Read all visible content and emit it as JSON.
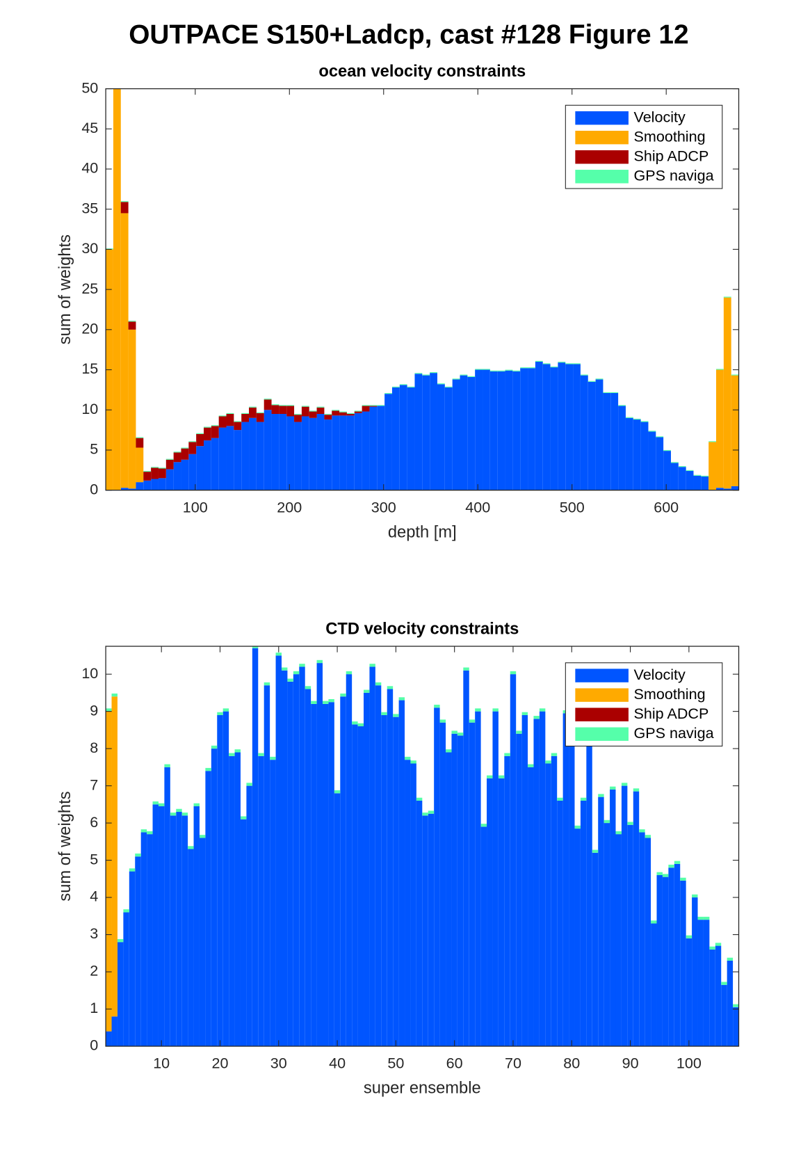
{
  "figure_title": "OUTPACE S150+Ladcp, cast #128  Figure 12",
  "chart_data": [
    {
      "type": "bar",
      "stacked": true,
      "title": "ocean velocity constraints",
      "xlabel": "depth [m]",
      "ylabel": "sum of weights",
      "x": [
        9,
        17,
        25,
        33,
        41,
        49,
        57,
        65,
        73,
        81,
        89,
        97,
        105,
        113,
        121,
        129,
        137,
        145,
        153,
        161,
        169,
        177,
        185,
        193,
        201,
        209,
        217,
        225,
        233,
        241,
        249,
        257,
        265,
        273,
        281,
        289,
        297,
        305,
        313,
        321,
        329,
        337,
        345,
        353,
        361,
        369,
        377,
        385,
        393,
        401,
        409,
        417,
        425,
        433,
        441,
        449,
        457,
        465,
        473,
        481,
        489,
        497,
        505,
        513,
        521,
        529,
        537,
        545,
        553,
        561,
        569,
        577,
        585,
        593,
        601,
        609,
        617,
        625,
        633,
        641,
        649,
        657,
        665,
        673
      ],
      "xlim": [
        5,
        677
      ],
      "xticks": [
        100,
        200,
        300,
        400,
        500,
        600
      ],
      "ylim": [
        0,
        50
      ],
      "yticks": [
        0,
        5,
        10,
        15,
        20,
        25,
        30,
        35,
        40,
        45,
        50
      ],
      "legend": "upper right",
      "series": [
        {
          "name": "Velocity",
          "color": "#0055ff",
          "values": [
            0,
            0,
            0.3,
            0.2,
            1.0,
            1.2,
            1.4,
            1.5,
            2.6,
            3.5,
            3.8,
            4.5,
            5.5,
            6.2,
            6.5,
            7.8,
            8.0,
            7.5,
            8.5,
            9.0,
            8.5,
            10.0,
            9.5,
            9.5,
            9.2,
            8.5,
            9.2,
            9.0,
            9.5,
            8.8,
            9.3,
            9.3,
            9.3,
            9.6,
            9.8,
            10.4,
            10.5,
            12.0,
            12.8,
            13.1,
            12.8,
            14.5,
            14.3,
            14.6,
            13.2,
            12.8,
            13.8,
            14.3,
            14.1,
            15.0,
            15.0,
            14.8,
            14.8,
            14.9,
            14.8,
            15.2,
            15.2,
            16.0,
            15.7,
            15.3,
            15.9,
            15.7,
            15.7,
            14.3,
            13.5,
            13.8,
            12.1,
            12.1,
            10.5,
            9.0,
            8.8,
            8.5,
            7.3,
            6.6,
            4.9,
            3.4,
            2.9,
            2.4,
            1.8,
            1.7,
            0,
            0.3,
            0.2,
            0.5
          ]
        },
        {
          "name": "Smoothing",
          "color": "#ffaa00",
          "values": [
            30,
            50,
            34.2,
            19.8,
            4.3,
            0,
            0,
            0,
            0,
            0,
            0,
            0,
            0,
            0,
            0,
            0,
            0,
            0,
            0,
            0,
            0,
            0,
            0,
            0,
            0,
            0,
            0,
            0,
            0,
            0,
            0,
            0,
            0,
            0,
            0,
            0,
            0,
            0,
            0,
            0,
            0,
            0,
            0,
            0,
            0,
            0,
            0,
            0,
            0,
            0,
            0,
            0,
            0,
            0,
            0,
            0,
            0,
            0,
            0,
            0,
            0,
            0,
            0,
            0,
            0,
            0,
            0,
            0,
            0,
            0,
            0,
            0,
            0,
            0,
            0,
            0,
            0,
            0,
            0,
            0,
            6,
            14.7,
            23.8,
            13.8
          ]
        },
        {
          "name": "Ship ADCP",
          "color": "#aa0000",
          "values": [
            0,
            0,
            1.4,
            1.0,
            1.2,
            1.1,
            1.4,
            1.2,
            1.2,
            1.2,
            1.4,
            1.5,
            1.5,
            1.6,
            1.5,
            1.4,
            1.5,
            1.0,
            1.0,
            1.3,
            1.1,
            1.3,
            1.1,
            1.0,
            1.3,
            0.9,
            1.2,
            0.8,
            0.8,
            0.6,
            0.6,
            0.4,
            0.2,
            0.2,
            0.7,
            0.1,
            0,
            0,
            0,
            0,
            0,
            0,
            0,
            0,
            0,
            0,
            0,
            0,
            0,
            0,
            0,
            0,
            0,
            0,
            0,
            0,
            0,
            0,
            0,
            0,
            0,
            0,
            0,
            0,
            0,
            0,
            0,
            0,
            0,
            0,
            0,
            0,
            0,
            0,
            0,
            0,
            0,
            0,
            0,
            0,
            0,
            0,
            0,
            0
          ]
        },
        {
          "name": "GPS naviga",
          "color": "#55ffaa",
          "values": [
            0.1,
            0.1,
            0.1,
            0.1,
            0.1,
            0.1,
            0.1,
            0.1,
            0.1,
            0.1,
            0.1,
            0.1,
            0.1,
            0.1,
            0.1,
            0.1,
            0.1,
            0.1,
            0.1,
            0.1,
            0.1,
            0.1,
            0.1,
            0.1,
            0.1,
            0.1,
            0.1,
            0.1,
            0.1,
            0.1,
            0.1,
            0.1,
            0.1,
            0.1,
            0.1,
            0.1,
            0.1,
            0.1,
            0.1,
            0.1,
            0.1,
            0.1,
            0.1,
            0.1,
            0.1,
            0.1,
            0.1,
            0.1,
            0.1,
            0.1,
            0.1,
            0.1,
            0.1,
            0.1,
            0.1,
            0.1,
            0.1,
            0.1,
            0.1,
            0.1,
            0.1,
            0.1,
            0.1,
            0.1,
            0.1,
            0.1,
            0.1,
            0.1,
            0.1,
            0.1,
            0.1,
            0.1,
            0.1,
            0.1,
            0.1,
            0.1,
            0.1,
            0.1,
            0.1,
            0.1,
            0.1,
            0.1,
            0.1,
            0.1
          ]
        }
      ]
    },
    {
      "type": "bar",
      "stacked": true,
      "title": "CTD velocity constraints",
      "xlabel": "super ensemble",
      "ylabel": "sum of weights",
      "x": [
        1,
        2,
        3,
        4,
        5,
        6,
        7,
        8,
        9,
        10,
        11,
        12,
        13,
        14,
        15,
        16,
        17,
        18,
        19,
        20,
        21,
        22,
        23,
        24,
        25,
        26,
        27,
        28,
        29,
        30,
        31,
        32,
        33,
        34,
        35,
        36,
        37,
        38,
        39,
        40,
        41,
        42,
        43,
        44,
        45,
        46,
        47,
        48,
        49,
        50,
        51,
        52,
        53,
        54,
        55,
        56,
        57,
        58,
        59,
        60,
        61,
        62,
        63,
        64,
        65,
        66,
        67,
        68,
        69,
        70,
        71,
        72,
        73,
        74,
        75,
        76,
        77,
        78,
        79,
        80,
        81,
        82,
        83,
        84,
        85,
        86,
        87,
        88,
        89,
        90,
        91,
        92,
        93,
        94,
        95,
        96,
        97,
        98,
        99,
        100,
        101,
        102,
        103,
        104,
        105,
        106,
        107,
        108
      ],
      "xlim": [
        0.5,
        108.5
      ],
      "xticks": [
        10,
        20,
        30,
        40,
        50,
        60,
        70,
        80,
        90,
        100
      ],
      "ylim": [
        0,
        10.75
      ],
      "yticks": [
        0,
        1,
        2,
        3,
        4,
        5,
        6,
        7,
        8,
        9,
        10
      ],
      "legend": "upper right",
      "series": [
        {
          "name": "Velocity",
          "color": "#0055ff",
          "values": [
            0.4,
            0.8,
            2.8,
            3.6,
            4.7,
            5.1,
            5.75,
            5.7,
            6.5,
            6.45,
            7.5,
            6.2,
            6.3,
            6.2,
            5.3,
            6.45,
            5.6,
            7.4,
            8.0,
            8.9,
            9.0,
            7.8,
            7.9,
            6.1,
            7.0,
            10.7,
            7.8,
            9.7,
            7.7,
            10.5,
            10.1,
            9.8,
            10.0,
            10.2,
            9.6,
            9.2,
            10.3,
            9.2,
            9.25,
            6.8,
            9.4,
            10.0,
            8.65,
            8.6,
            9.5,
            10.2,
            9.7,
            8.9,
            9.6,
            8.85,
            9.3,
            7.7,
            7.6,
            6.6,
            6.2,
            6.25,
            9.1,
            8.7,
            7.9,
            8.4,
            8.35,
            10.1,
            8.7,
            9.0,
            5.9,
            7.2,
            9.0,
            7.2,
            7.8,
            10.0,
            8.4,
            8.9,
            7.5,
            8.8,
            9.0,
            7.6,
            7.8,
            6.6,
            8.95,
            8.9,
            5.85,
            6.6,
            8.6,
            5.2,
            6.7,
            6.0,
            6.9,
            5.7,
            7.0,
            5.95,
            6.85,
            5.75,
            5.6,
            3.3,
            4.6,
            4.55,
            4.8,
            4.9,
            4.45,
            2.9,
            4.0,
            3.4,
            3.4,
            2.6,
            2.7,
            1.65,
            2.3,
            1.05
          ]
        },
        {
          "name": "Smoothing",
          "color": "#ffaa00",
          "values": [
            8.6,
            8.6,
            0,
            0,
            0,
            0,
            0,
            0,
            0,
            0,
            0,
            0,
            0,
            0,
            0,
            0,
            0,
            0,
            0,
            0,
            0,
            0,
            0,
            0,
            0,
            0,
            0,
            0,
            0,
            0,
            0,
            0,
            0,
            0,
            0,
            0,
            0,
            0,
            0,
            0,
            0,
            0,
            0,
            0,
            0,
            0,
            0,
            0,
            0,
            0,
            0,
            0,
            0,
            0,
            0,
            0,
            0,
            0,
            0,
            0,
            0,
            0,
            0,
            0,
            0,
            0,
            0,
            0,
            0,
            0,
            0,
            0,
            0,
            0,
            0,
            0,
            0,
            0,
            0,
            0,
            0,
            0,
            0,
            0,
            0,
            0,
            0,
            0,
            0,
            0,
            0,
            0,
            0,
            0,
            0,
            0,
            0,
            0,
            0,
            0,
            0,
            0,
            0,
            0,
            0,
            0,
            0,
            0
          ]
        },
        {
          "name": "Ship ADCP",
          "color": "#aa0000",
          "values": [
            0,
            0,
            0,
            0,
            0,
            0,
            0,
            0,
            0,
            0,
            0,
            0,
            0,
            0,
            0,
            0,
            0,
            0,
            0,
            0,
            0,
            0,
            0,
            0,
            0,
            0,
            0,
            0,
            0,
            0,
            0,
            0,
            0,
            0,
            0,
            0,
            0,
            0,
            0,
            0,
            0,
            0,
            0,
            0,
            0,
            0,
            0,
            0,
            0,
            0,
            0,
            0,
            0,
            0,
            0,
            0,
            0,
            0,
            0,
            0,
            0,
            0,
            0,
            0,
            0,
            0,
            0,
            0,
            0,
            0,
            0,
            0,
            0,
            0,
            0,
            0,
            0,
            0,
            0,
            0,
            0,
            0,
            0,
            0,
            0,
            0,
            0,
            0,
            0,
            0,
            0,
            0,
            0,
            0,
            0,
            0,
            0,
            0,
            0,
            0,
            0,
            0,
            0,
            0,
            0,
            0,
            0,
            0
          ]
        },
        {
          "name": "GPS naviga",
          "color": "#55ffaa",
          "values": [
            0.08,
            0.08,
            0.08,
            0.08,
            0.08,
            0.08,
            0.08,
            0.08,
            0.08,
            0.08,
            0.08,
            0.08,
            0.08,
            0.08,
            0.08,
            0.08,
            0.08,
            0.08,
            0.08,
            0.08,
            0.08,
            0.08,
            0.08,
            0.08,
            0.08,
            0.08,
            0.08,
            0.08,
            0.08,
            0.08,
            0.08,
            0.08,
            0.08,
            0.08,
            0.08,
            0.08,
            0.08,
            0.08,
            0.08,
            0.08,
            0.08,
            0.08,
            0.08,
            0.08,
            0.08,
            0.08,
            0.08,
            0.08,
            0.08,
            0.08,
            0.08,
            0.08,
            0.08,
            0.08,
            0.08,
            0.08,
            0.08,
            0.08,
            0.08,
            0.08,
            0.08,
            0.08,
            0.08,
            0.08,
            0.08,
            0.08,
            0.08,
            0.08,
            0.08,
            0.08,
            0.08,
            0.08,
            0.08,
            0.08,
            0.08,
            0.08,
            0.08,
            0.08,
            0.08,
            0.08,
            0.08,
            0.08,
            0.08,
            0.08,
            0.08,
            0.08,
            0.08,
            0.08,
            0.08,
            0.08,
            0.08,
            0.08,
            0.08,
            0.08,
            0.08,
            0.08,
            0.08,
            0.08,
            0.08,
            0.08,
            0.08,
            0.08,
            0.08,
            0.08,
            0.08,
            0.08,
            0.08,
            0.08
          ]
        }
      ]
    }
  ]
}
